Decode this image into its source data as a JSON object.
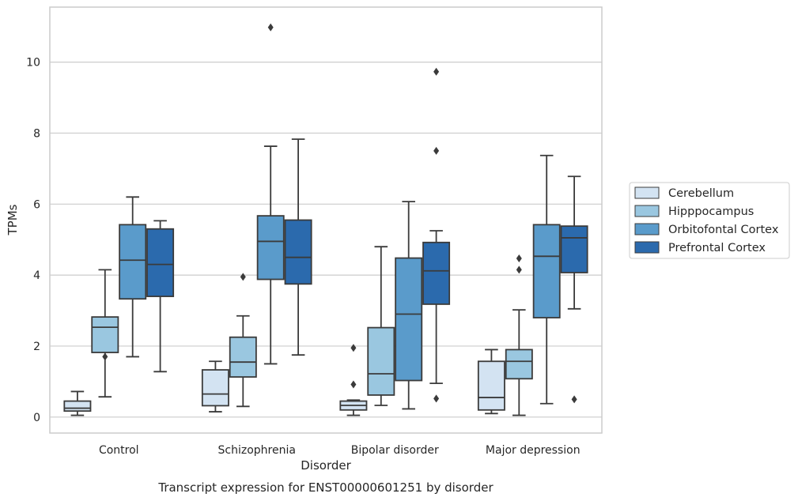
{
  "chart_data": {
    "type": "box",
    "title": "Transcript expression for ENST00000601251 by disorder",
    "xlabel": "Disorder",
    "ylabel": "TPMs",
    "ylim": [
      -0.45,
      11.55
    ],
    "yticks": [
      0,
      2,
      4,
      6,
      8,
      10
    ],
    "grid": "horizontal",
    "legend_position": "right",
    "categories": [
      "Control",
      "Schizophrenia",
      "Bipolar disorder",
      "Major depression"
    ],
    "series": [
      {
        "name": "Cerebellum",
        "color": "#d3e3f2",
        "boxes": [
          {
            "whisker_low": 0.05,
            "q1": 0.17,
            "median": 0.25,
            "q3": 0.45,
            "whisker_high": 0.72,
            "outliers": []
          },
          {
            "whisker_low": 0.15,
            "q1": 0.32,
            "median": 0.65,
            "q3": 1.33,
            "whisker_high": 1.57,
            "outliers": []
          },
          {
            "whisker_low": 0.05,
            "q1": 0.2,
            "median": 0.33,
            "q3": 0.45,
            "whisker_high": 0.48,
            "outliers": [
              0.92,
              1.95
            ]
          },
          {
            "whisker_low": 0.1,
            "q1": 0.2,
            "median": 0.55,
            "q3": 1.57,
            "whisker_high": 1.9,
            "outliers": []
          }
        ]
      },
      {
        "name": "Hipppocampus",
        "color": "#9ac7e0",
        "boxes": [
          {
            "whisker_low": 0.57,
            "q1": 1.82,
            "median": 2.53,
            "q3": 2.82,
            "whisker_high": 4.15,
            "outliers": [
              1.7
            ]
          },
          {
            "whisker_low": 0.3,
            "q1": 1.13,
            "median": 1.55,
            "q3": 2.25,
            "whisker_high": 2.85,
            "outliers": [
              3.95
            ]
          },
          {
            "whisker_low": 0.33,
            "q1": 0.62,
            "median": 1.22,
            "q3": 2.52,
            "whisker_high": 4.8,
            "outliers": []
          },
          {
            "whisker_low": 0.05,
            "q1": 1.08,
            "median": 1.57,
            "q3": 1.9,
            "whisker_high": 3.02,
            "outliers": [
              4.15,
              4.47
            ]
          }
        ]
      },
      {
        "name": "Orbitofontal Cortex",
        "color": "#5a9bcb",
        "boxes": [
          {
            "whisker_low": 1.7,
            "q1": 3.33,
            "median": 4.42,
            "q3": 5.42,
            "whisker_high": 6.2,
            "outliers": []
          },
          {
            "whisker_low": 1.5,
            "q1": 3.88,
            "median": 4.95,
            "q3": 5.67,
            "whisker_high": 7.63,
            "outliers": [
              10.98
            ]
          },
          {
            "whisker_low": 0.23,
            "q1": 1.03,
            "median": 2.9,
            "q3": 4.48,
            "whisker_high": 6.07,
            "outliers": []
          },
          {
            "whisker_low": 0.38,
            "q1": 2.8,
            "median": 4.53,
            "q3": 5.42,
            "whisker_high": 7.37,
            "outliers": []
          }
        ]
      },
      {
        "name": "Prefrontal Cortex",
        "color": "#2b6aad",
        "boxes": [
          {
            "whisker_low": 1.28,
            "q1": 3.4,
            "median": 4.3,
            "q3": 5.3,
            "whisker_high": 5.53,
            "outliers": []
          },
          {
            "whisker_low": 1.75,
            "q1": 3.75,
            "median": 4.5,
            "q3": 5.55,
            "whisker_high": 7.83,
            "outliers": []
          },
          {
            "whisker_low": 0.95,
            "q1": 3.18,
            "median": 4.12,
            "q3": 4.92,
            "whisker_high": 5.25,
            "outliers": [
              0.52,
              7.5,
              9.73
            ]
          },
          {
            "whisker_low": 3.05,
            "q1": 4.07,
            "median": 5.05,
            "q3": 5.38,
            "whisker_high": 6.78,
            "outliers": [
              0.5
            ]
          }
        ]
      }
    ]
  }
}
